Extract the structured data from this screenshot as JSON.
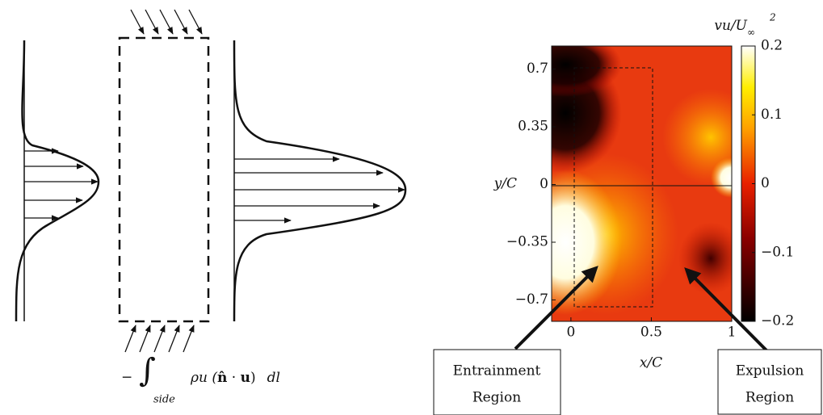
{
  "diagram": {
    "formula": {
      "sign": "−",
      "integral": "∫",
      "subscript": "side",
      "body": "ρu (",
      "nhat": "n̂",
      "dot": " · ",
      "u": "u",
      "close": ")",
      "dl": "dl"
    }
  },
  "plot": {
    "xlabel": "x/C",
    "ylabel": "y/C",
    "xlim": [
      -0.12,
      1
    ],
    "ylim": [
      -0.83,
      0.84
    ],
    "xticks": [
      0,
      0.5,
      1
    ],
    "yticks": [
      {
        "value": -0.7,
        "label": "−0.7"
      },
      {
        "value": -0.35,
        "label": "−0.35"
      },
      0,
      0.35,
      0.7
    ],
    "colorbar": {
      "title": {
        "base": "vu/U",
        "sub": "∞",
        "sup": "2"
      },
      "lim": [
        -0.2,
        0.2
      ],
      "ticks": [
        {
          "value": -0.2,
          "label": "−0.2"
        },
        {
          "value": -0.1,
          "label": "−0.1"
        },
        0,
        0.1,
        0.2
      ]
    },
    "annotations": [
      {
        "lines": [
          "Entrainment",
          "Region"
        ]
      },
      {
        "lines": [
          "Expulsion",
          "Region"
        ]
      }
    ]
  }
}
